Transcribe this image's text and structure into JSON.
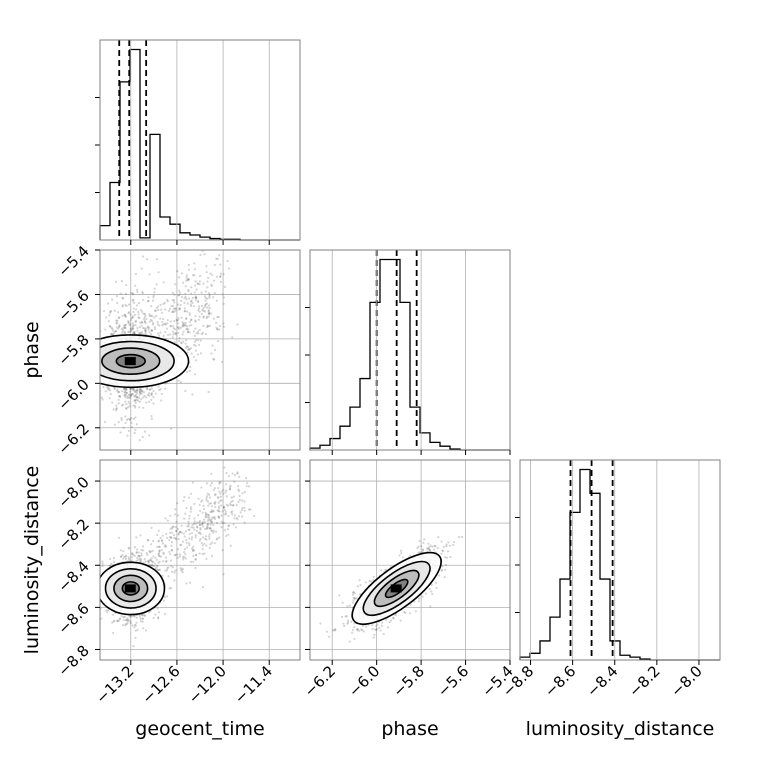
{
  "chart_data": {
    "type": "corner",
    "parameters": [
      "geocent_time",
      "phase",
      "luminosity_distance"
    ],
    "axis_labels": [
      "geocent_time",
      "phase",
      "luminosity_distance"
    ],
    "ranges": [
      [
        -13.6,
        -11.0
      ],
      [
        -6.3,
        -5.4
      ],
      [
        -8.85,
        -7.9
      ]
    ],
    "ticks": [
      [
        -13.2,
        -12.6,
        -12.0,
        -11.4
      ],
      [
        -6.2,
        -6.0,
        -5.8,
        -5.6,
        -5.4
      ],
      [
        -8.8,
        -8.6,
        -8.4,
        -8.2,
        -8.0
      ]
    ],
    "tick_labels": [
      [
        "−13.2",
        "−12.6",
        "−12.0",
        "−11.4"
      ],
      [
        "−6.2",
        "−6.0",
        "−5.8",
        "−5.6",
        "−5.4"
      ],
      [
        "−8.8",
        "−8.6",
        "−8.4",
        "−8.2",
        "−8.0"
      ]
    ],
    "quantiles": [
      [
        -13.35,
        -13.22,
        -13.0
      ],
      [
        -6.0,
        -5.91,
        -5.82
      ],
      [
        -8.61,
        -8.51,
        -8.41
      ]
    ],
    "histograms": [
      {
        "param": "geocent_time",
        "bin_edges": [
          -13.6,
          -13.47,
          -13.34,
          -13.21,
          -13.08,
          -12.95,
          -12.82,
          -12.69,
          -12.56,
          -12.43,
          -12.3,
          -12.17,
          -12.04,
          -11.91,
          -11.78,
          -11.65,
          -11.52,
          -11.39,
          -11.26,
          -11.13,
          -11.0
        ],
        "counts": [
          0.2,
          0.8,
          2.2,
          2.65,
          0.03,
          1.47,
          0.32,
          0.22,
          0.1,
          0.07,
          0.04,
          0.02,
          0.01,
          0.01,
          0.0,
          0.0,
          0.0,
          0.0,
          0.0,
          0.0
        ]
      },
      {
        "param": "phase",
        "bin_edges": [
          -6.3,
          -6.255,
          -6.21,
          -6.165,
          -6.12,
          -6.075,
          -6.03,
          -5.985,
          -5.94,
          -5.895,
          -5.85,
          -5.805,
          -5.76,
          -5.715,
          -5.67,
          -5.625,
          -5.58,
          -5.535,
          -5.49,
          -5.445,
          -5.4
        ],
        "counts": [
          0.02,
          0.05,
          0.12,
          0.25,
          0.45,
          0.75,
          1.55,
          2.0,
          2.0,
          1.55,
          0.45,
          0.18,
          0.08,
          0.04,
          0.01,
          0.0,
          0.0,
          0.0,
          0.0,
          0.0
        ]
      },
      {
        "param": "luminosity_distance",
        "bin_edges": [
          -8.85,
          -8.8025,
          -8.755,
          -8.7075,
          -8.66,
          -8.6125,
          -8.565,
          -8.5175,
          -8.47,
          -8.4225,
          -8.375,
          -8.3275,
          -8.28,
          -8.2325,
          -8.185,
          -8.1375,
          -8.09,
          -8.0425,
          -7.995,
          -7.9475,
          -7.9
        ],
        "counts": [
          0.03,
          0.07,
          0.2,
          0.45,
          0.85,
          1.55,
          2.0,
          1.75,
          0.85,
          0.2,
          0.05,
          0.03,
          0.01,
          0.0,
          0.0,
          0.0,
          0.0,
          0.0,
          0.0,
          0.0
        ]
      }
    ],
    "pair_density": [
      {
        "row": 1,
        "col": 0,
        "x": "geocent_time",
        "y": "phase",
        "mean": [
          -13.2,
          -5.9
        ],
        "sd": [
          0.17,
          0.13
        ],
        "tail_to": [
          -12.1,
          -5.62
        ],
        "contours": [
          0.5,
          1.0,
          1.5,
          2.0
        ]
      },
      {
        "row": 2,
        "col": 0,
        "x": "geocent_time",
        "y": "luminosity_distance",
        "mean": [
          -13.2,
          -8.51
        ],
        "sd": [
          0.17,
          0.08
        ],
        "tail_to": [
          -11.8,
          -8.05
        ],
        "contours": [
          0.5,
          1.0,
          1.5,
          2.0
        ]
      },
      {
        "row": 2,
        "col": 1,
        "x": "phase",
        "y": "luminosity_distance",
        "mean": [
          -5.91,
          -8.51
        ],
        "sd": [
          0.1,
          0.085
        ],
        "correlation": 0.75,
        "contours": [
          0.5,
          1.0,
          1.5,
          2.0
        ]
      }
    ],
    "grid": true,
    "colors": {
      "line": "#000000",
      "grid": "#b0b0b0",
      "frame": "#808080",
      "points": "#555555"
    }
  }
}
